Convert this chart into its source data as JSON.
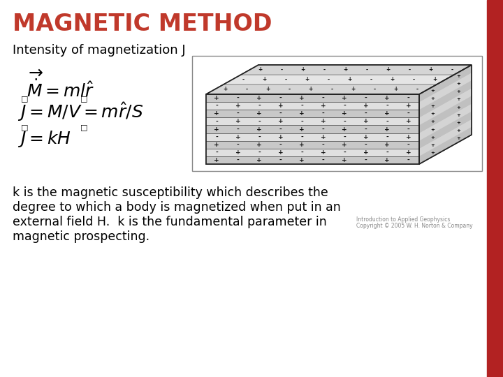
{
  "title": "MAGNETIC METHOD",
  "title_color": "#C0392B",
  "title_fontsize": 24,
  "title_fontweight": "bold",
  "bg_color": "#FFFFFF",
  "subtitle": "Intensity of magnetization J",
  "subtitle_fontsize": 13,
  "formula_fontsize": 15,
  "body_text_lines": [
    "k is the magnetic susceptibility which describes the",
    "degree to which a body is magnetized when put in an",
    "external field H.  k is the fundamental parameter in",
    "magnetic prospecting."
  ],
  "body_fontsize": 12.5,
  "red_bar_color": "#B22222",
  "copyright_line1": "Introduction to Applied Geophysics",
  "copyright_line2": "Copyright © 2005 W. H. Norton & Company",
  "copyright_fontsize": 5.5
}
